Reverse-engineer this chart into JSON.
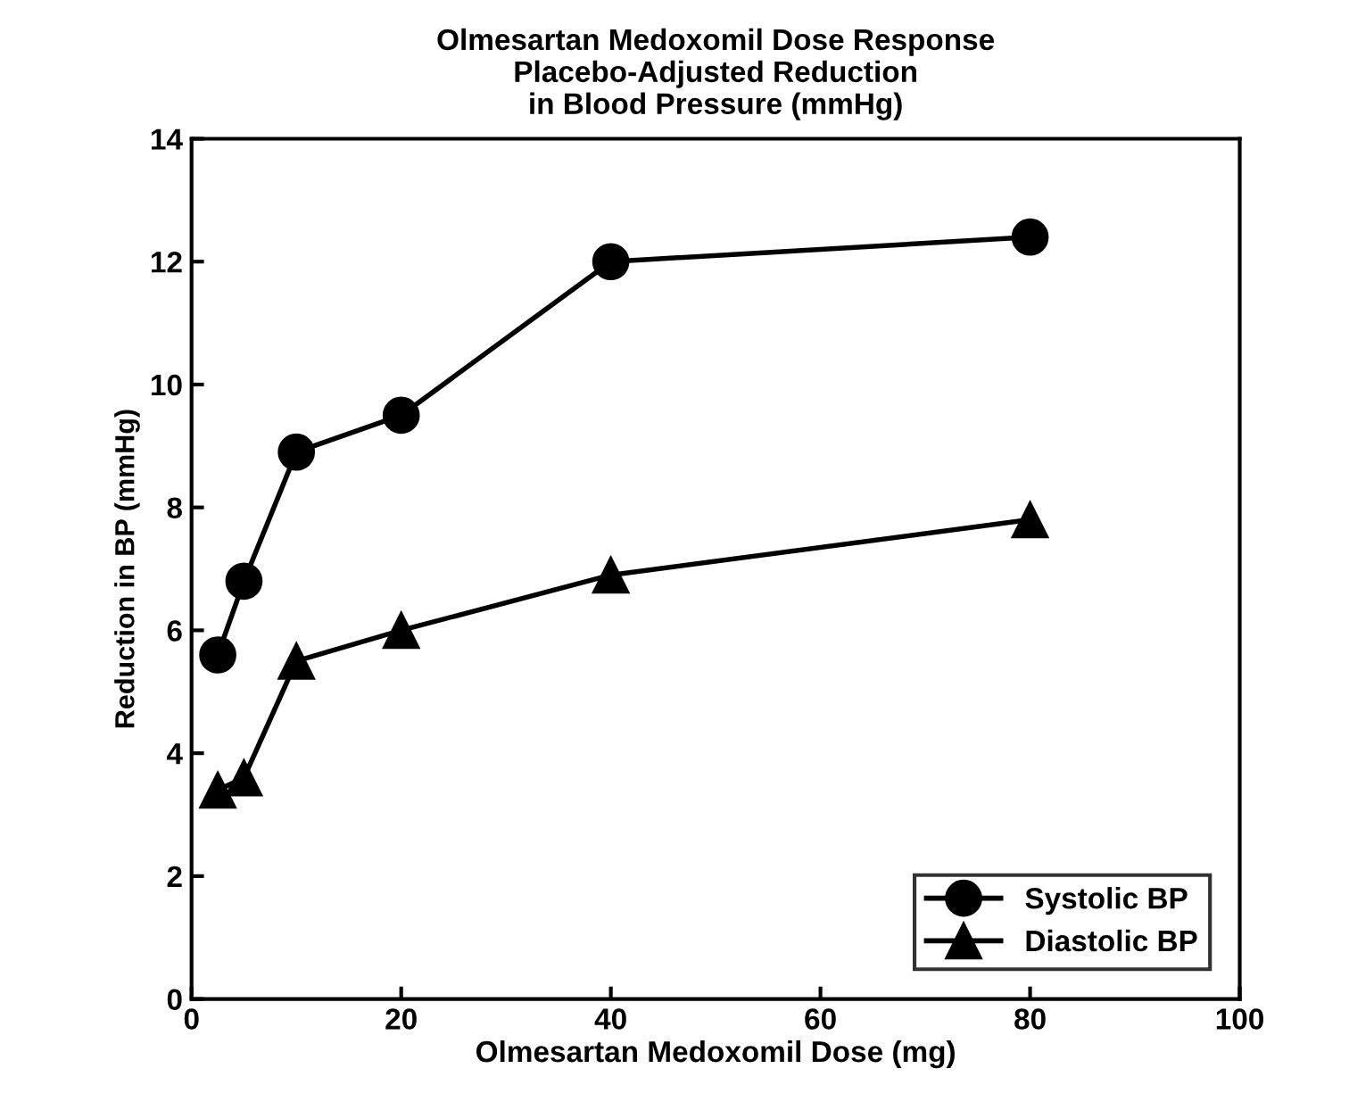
{
  "chart_data": {
    "type": "line",
    "title": "Olmesartan Medoxomil Dose Response\nPlacebo-Adjusted Reduction\nin Blood Pressure (mmHg)",
    "xlabel": "Olmesartan Medoxomil Dose (mg)",
    "ylabel": "Reduction in BP (mmHg)",
    "x": [
      2.5,
      5,
      10,
      20,
      40,
      80
    ],
    "series": [
      {
        "name": "Systolic BP",
        "color": "#000000",
        "marker": "circle",
        "values": [
          5.6,
          6.8,
          8.9,
          9.5,
          12.0,
          12.4
        ]
      },
      {
        "name": "Diastolic BP",
        "color": "#000000",
        "marker": "triangle",
        "values": [
          3.4,
          3.6,
          5.5,
          6.0,
          6.9,
          7.8
        ]
      }
    ],
    "xlim": [
      0,
      100
    ],
    "xticks": [
      0,
      20,
      40,
      60,
      80,
      100
    ],
    "ylim": [
      0,
      14
    ],
    "yticks": [
      0,
      2,
      4,
      6,
      8,
      10,
      12,
      14
    ],
    "grid": false,
    "legend": "bottom right",
    "line_style": "solid"
  }
}
